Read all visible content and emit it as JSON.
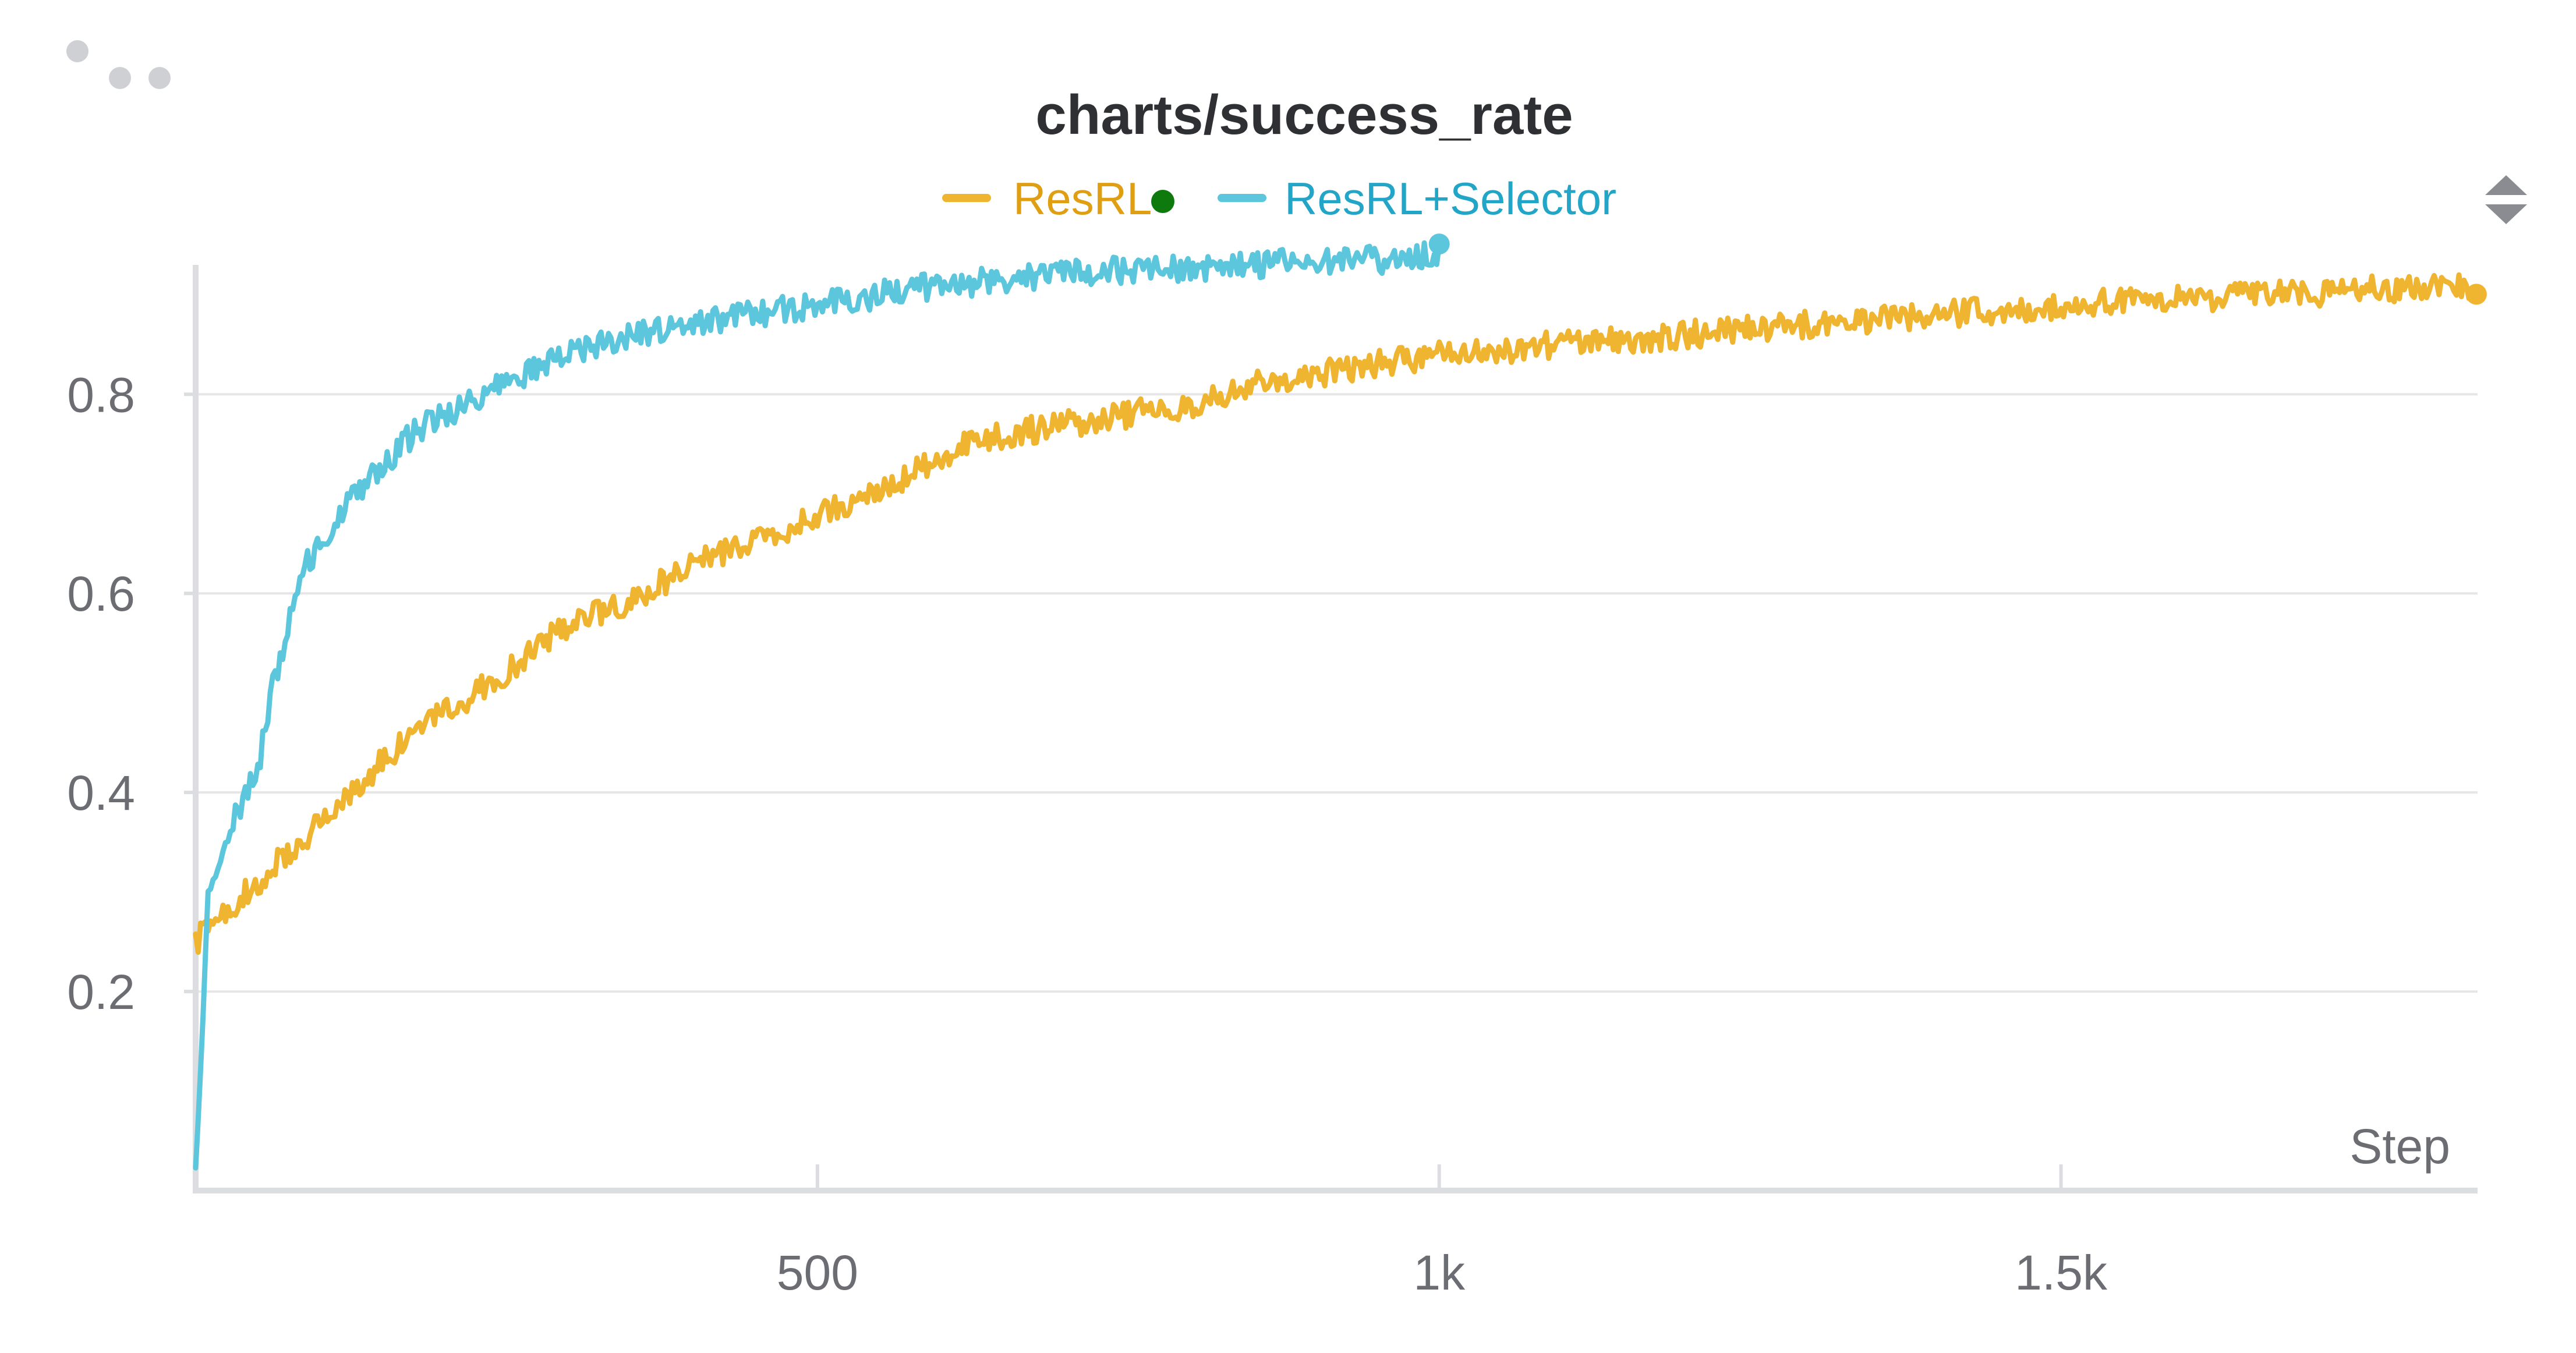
{
  "colors": {
    "background": "#ffffff",
    "grid": "#e6e6e8",
    "axis": "#dcdde0",
    "tick_text": "#6b6d73",
    "title": "#2f3033",
    "menu_dots": "#cfd0d4",
    "status_dot": "#0e7a0d"
  },
  "icons": {
    "menu": "more-dots-icon",
    "sort": "sort-arrows-icon",
    "status": "status-dot-icon"
  },
  "chart_data": {
    "type": "line",
    "title": "charts/success_rate",
    "xlabel": "Step",
    "ylabel": "",
    "xlim": [
      0,
      1835
    ],
    "ylim": [
      0.0,
      0.93
    ],
    "x_ticks": [
      500,
      1000,
      1500
    ],
    "x_tick_labels": [
      "500",
      "1k",
      "1.5k"
    ],
    "y_ticks": [
      0.2,
      0.4,
      0.6,
      0.8
    ],
    "y_tick_labels": [
      "0.2",
      "0.4",
      "0.6",
      "0.8"
    ],
    "grid": true,
    "legend_position": "top-center",
    "series": [
      {
        "name": "ResRL",
        "color": "#f0b530",
        "x": [
          0,
          25,
          50,
          75,
          100,
          125,
          150,
          175,
          200,
          250,
          300,
          350,
          400,
          450,
          500,
          550,
          600,
          650,
          700,
          750,
          800,
          850,
          900,
          950,
          1000,
          1050,
          1100,
          1150,
          1200,
          1250,
          1300,
          1350,
          1400,
          1450,
          1500,
          1550,
          1600,
          1650,
          1700,
          1750,
          1800,
          1835
        ],
        "y": [
          0.25,
          0.28,
          0.31,
          0.34,
          0.37,
          0.4,
          0.43,
          0.46,
          0.48,
          0.52,
          0.57,
          0.59,
          0.63,
          0.65,
          0.68,
          0.7,
          0.74,
          0.76,
          0.77,
          0.78,
          0.79,
          0.81,
          0.82,
          0.83,
          0.84,
          0.845,
          0.85,
          0.855,
          0.86,
          0.865,
          0.87,
          0.875,
          0.88,
          0.885,
          0.89,
          0.895,
          0.895,
          0.9,
          0.9,
          0.905,
          0.91,
          0.91
        ]
      },
      {
        "name": "ResRL+Selector",
        "color": "#5cc6dd",
        "x": [
          0,
          5,
          10,
          20,
          30,
          40,
          50,
          60,
          75,
          90,
          110,
          130,
          150,
          175,
          200,
          250,
          300,
          350,
          400,
          450,
          500,
          550,
          600,
          650,
          700,
          750,
          800,
          850,
          900,
          950,
          1000
        ],
        "y": [
          0.02,
          0.15,
          0.3,
          0.33,
          0.37,
          0.4,
          0.42,
          0.5,
          0.57,
          0.63,
          0.67,
          0.7,
          0.73,
          0.76,
          0.78,
          0.81,
          0.84,
          0.86,
          0.87,
          0.88,
          0.89,
          0.9,
          0.91,
          0.915,
          0.92,
          0.925,
          0.925,
          0.93,
          0.935,
          0.935,
          0.94
        ]
      }
    ]
  }
}
